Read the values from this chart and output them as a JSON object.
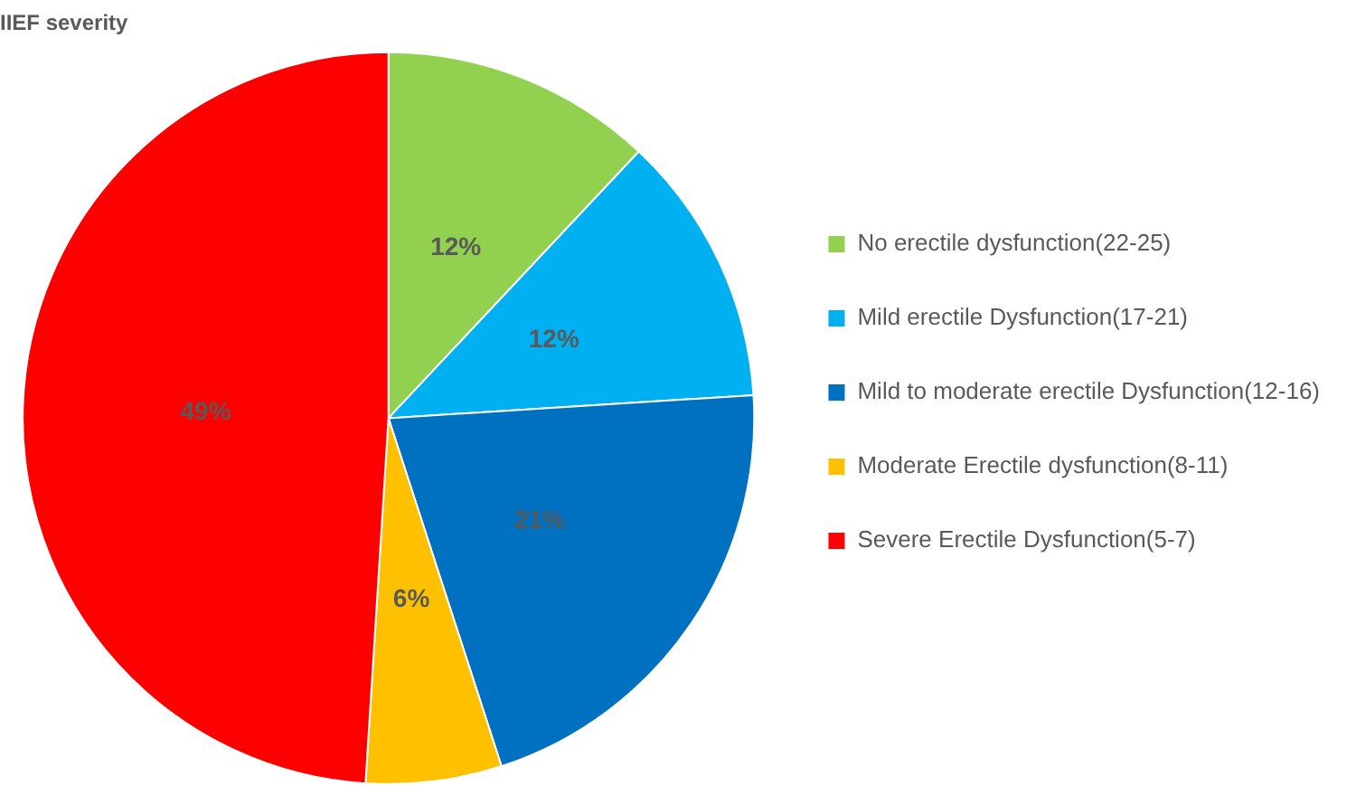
{
  "chart_data": {
    "type": "pie",
    "title": "IIEF severity",
    "categories": [
      "No erectile dysfunction(22-25)",
      "Mild erectile Dysfunction(17-21)",
      "Mild to moderate erectile Dysfunction(12-16)",
      "Moderate Erectile dysfunction(8-11)",
      "Severe Erectile Dysfunction(5-7)"
    ],
    "values": [
      12,
      12,
      21,
      6,
      49
    ],
    "value_labels": [
      "12%",
      "12%",
      "21%",
      "6%",
      "49%"
    ],
    "colors": [
      "#92d050",
      "#00b0f0",
      "#0070c0",
      "#ffc000",
      "#ff0000"
    ],
    "legend": "right"
  }
}
